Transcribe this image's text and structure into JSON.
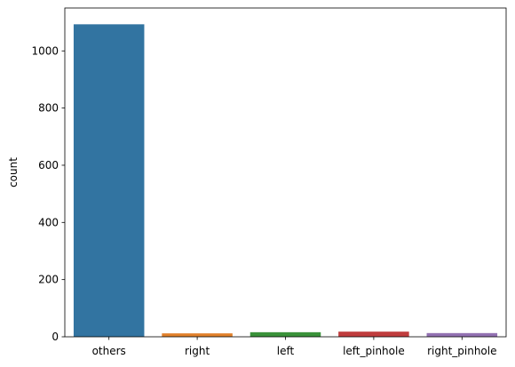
{
  "chart_data": {
    "type": "bar",
    "title": "",
    "xlabel": "",
    "ylabel": "count",
    "categories": [
      "others",
      "right",
      "left",
      "left_pinhole",
      "right_pinhole"
    ],
    "values": [
      1093,
      12,
      16,
      18,
      13
    ],
    "colors": [
      "#3274a1",
      "#e1812c",
      "#3a923a",
      "#c03d3e",
      "#9372b2"
    ],
    "yticks": [
      0,
      200,
      400,
      600,
      800,
      1000
    ],
    "ylim": [
      0,
      1150
    ],
    "grid": false
  }
}
